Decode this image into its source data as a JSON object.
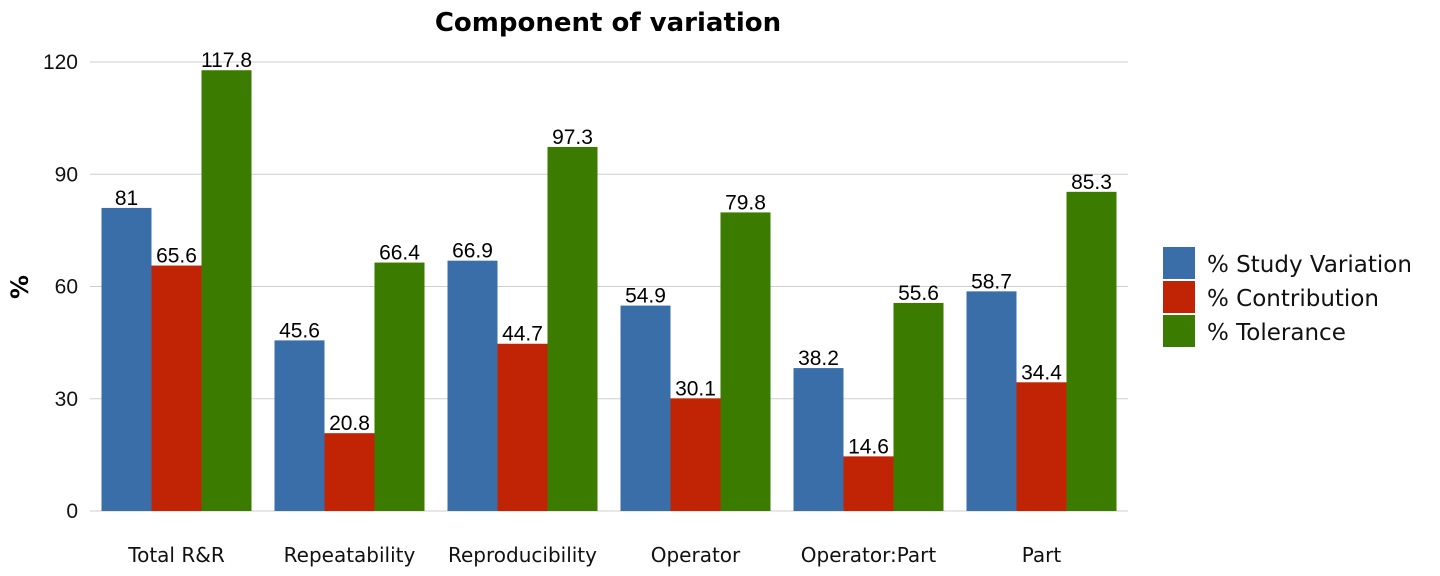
{
  "chart_data": {
    "type": "bar",
    "title": "Component of variation",
    "xlabel": "",
    "ylabel": "%",
    "ylim": [
      0,
      120
    ],
    "yticks": [
      0,
      30,
      60,
      90,
      120
    ],
    "grid": true,
    "legend_position": "right",
    "categories": [
      "Total R&R",
      "Repeatability",
      "Reproducibility",
      "Operator",
      "Operator:Part",
      "Part"
    ],
    "series": [
      {
        "name": "% Study Variation",
        "color": "#3A6EA8",
        "values": [
          81,
          45.6,
          66.9,
          54.9,
          38.2,
          58.7
        ],
        "labels": [
          "81",
          "45.6",
          "66.9",
          "54.9",
          "38.2",
          "58.7"
        ]
      },
      {
        "name": "% Contribution",
        "color": "#C12405",
        "values": [
          65.6,
          20.8,
          44.7,
          30.1,
          14.6,
          34.4
        ],
        "labels": [
          "65.6",
          "20.8",
          "44.7",
          "30.1",
          "14.6",
          "34.4"
        ]
      },
      {
        "name": "% Tolerance",
        "color": "#3A7B00",
        "values": [
          117.8,
          66.4,
          97.3,
          79.8,
          55.6,
          85.3
        ],
        "labels": [
          "117.8",
          "66.4",
          "97.3",
          "79.8",
          "55.6",
          "85.3"
        ]
      }
    ]
  }
}
